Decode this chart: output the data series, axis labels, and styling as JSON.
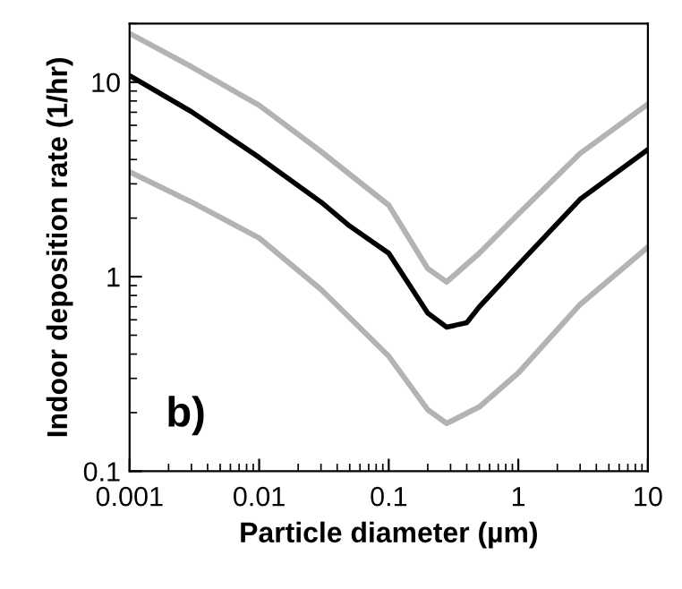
{
  "chart_data": {
    "type": "line",
    "xlabel": "Particle diameter (µm)",
    "ylabel": "Indoor deposition rate (1/hr)",
    "log": "xy",
    "xlim": [
      0.001,
      10
    ],
    "ylim": [
      0.1,
      20
    ],
    "xticks": [
      0.001,
      0.01,
      0.1,
      1,
      10
    ],
    "yticks": [
      0.1,
      1,
      10
    ],
    "grid": false,
    "legend": false,
    "marker": "none",
    "line_style": "solid",
    "annotations": [
      "b)"
    ],
    "series": [
      {
        "color": "#b3b3b3",
        "x": [
          0.001,
          0.003,
          0.01,
          0.03,
          0.1,
          0.2,
          0.28,
          0.5,
          1,
          3,
          10
        ],
        "values": [
          17.8,
          12,
          7.6,
          4.4,
          2.33,
          1.1,
          0.94,
          1.32,
          2.1,
          4.3,
          7.7
        ]
      },
      {
        "color": "#b3b3b3",
        "x": [
          0.001,
          0.003,
          0.01,
          0.03,
          0.1,
          0.2,
          0.28,
          0.5,
          1,
          3,
          10
        ],
        "values": [
          3.46,
          2.42,
          1.58,
          0.86,
          0.39,
          0.207,
          0.176,
          0.214,
          0.32,
          0.72,
          1.42
        ]
      },
      {
        "color": "#000000",
        "x": [
          0.001,
          0.003,
          0.01,
          0.03,
          0.05,
          0.1,
          0.2,
          0.28,
          0.4,
          0.5,
          1,
          3,
          10
        ],
        "values": [
          10.8,
          7.05,
          4.1,
          2.42,
          1.82,
          1.32,
          0.65,
          0.55,
          0.58,
          0.7,
          1.15,
          2.5,
          4.5
        ]
      }
    ]
  }
}
